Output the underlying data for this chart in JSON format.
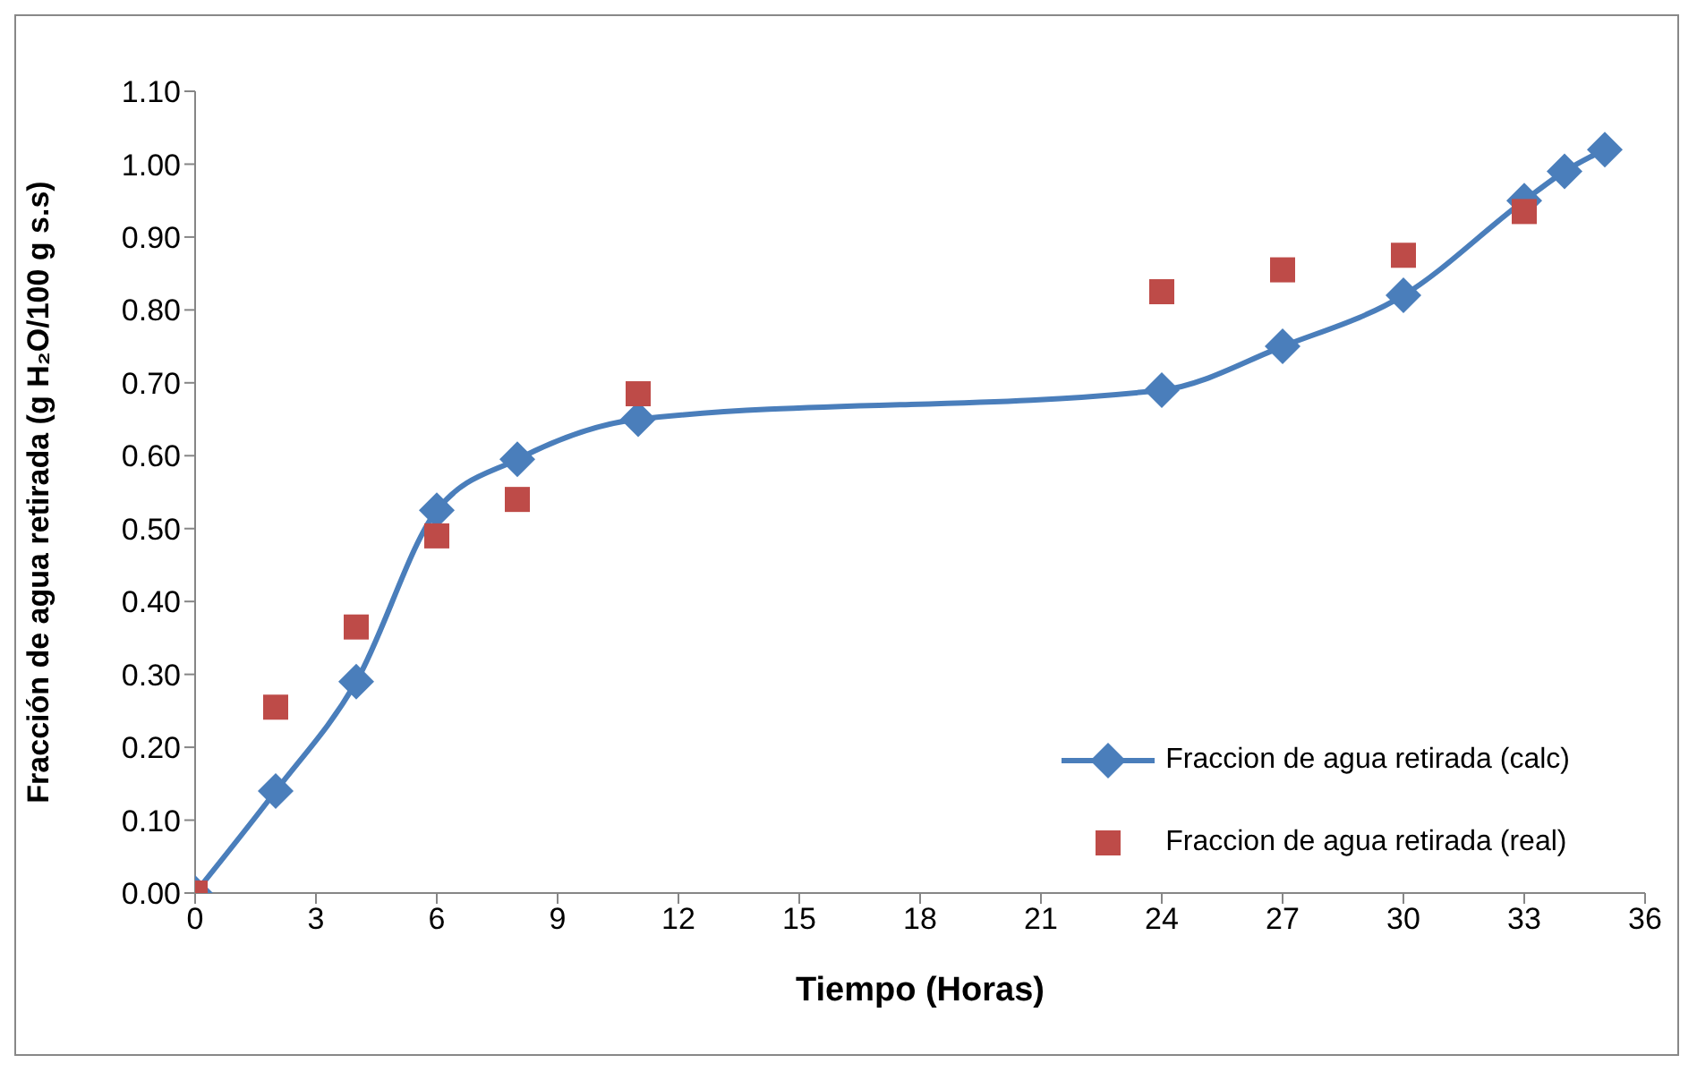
{
  "chart_data": {
    "type": "line",
    "xlabel": "Tiempo (Horas)",
    "ylabel": "Fracción de agua retirada (g H₂O/100 g s.s)",
    "xlim": [
      0,
      36
    ],
    "xticks": [
      0,
      3,
      6,
      9,
      12,
      15,
      18,
      21,
      24,
      27,
      30,
      33,
      36
    ],
    "ylim": [
      0,
      1.1
    ],
    "yticks": [
      {
        "value": 0,
        "label": "0.00"
      },
      {
        "value": 0.1,
        "label": "0.10"
      },
      {
        "value": 0.2,
        "label": "0.20"
      },
      {
        "value": 0.3,
        "label": "0.30"
      },
      {
        "value": 0.4,
        "label": "0.40"
      },
      {
        "value": 0.5,
        "label": "0.50"
      },
      {
        "value": 0.6,
        "label": "0.60"
      },
      {
        "value": 0.7,
        "label": "0.70"
      },
      {
        "value": 0.8,
        "label": "0.80"
      },
      {
        "value": 0.9,
        "label": "0.90"
      },
      {
        "value": 1.0,
        "label": "1.00"
      },
      {
        "value": 1.1,
        "label": "1.10"
      }
    ],
    "grid": false,
    "legend": "bottom right",
    "series": [
      {
        "name": "Fraccion de agua retirada (calc)",
        "marker": "diamond",
        "line_style": "solid",
        "color": "#4a7ebb",
        "x": [
          0,
          2,
          4,
          6,
          8,
          11,
          24,
          27,
          30,
          33,
          34,
          35
        ],
        "values": [
          0,
          0.14,
          0.29,
          0.525,
          0.595,
          0.65,
          0.69,
          0.75,
          0.82,
          0.95,
          0.99,
          1.02
        ]
      },
      {
        "name": "Fraccion de agua retirada (real)",
        "type": "scatter",
        "marker": "square",
        "color": "#be4b48",
        "x": [
          0,
          2,
          4,
          6,
          8,
          11,
          24,
          27,
          30,
          33
        ],
        "values": [
          0,
          0.255,
          0.365,
          0.49,
          0.54,
          0.685,
          0.825,
          0.855,
          0.875,
          0.935
        ]
      }
    ]
  }
}
